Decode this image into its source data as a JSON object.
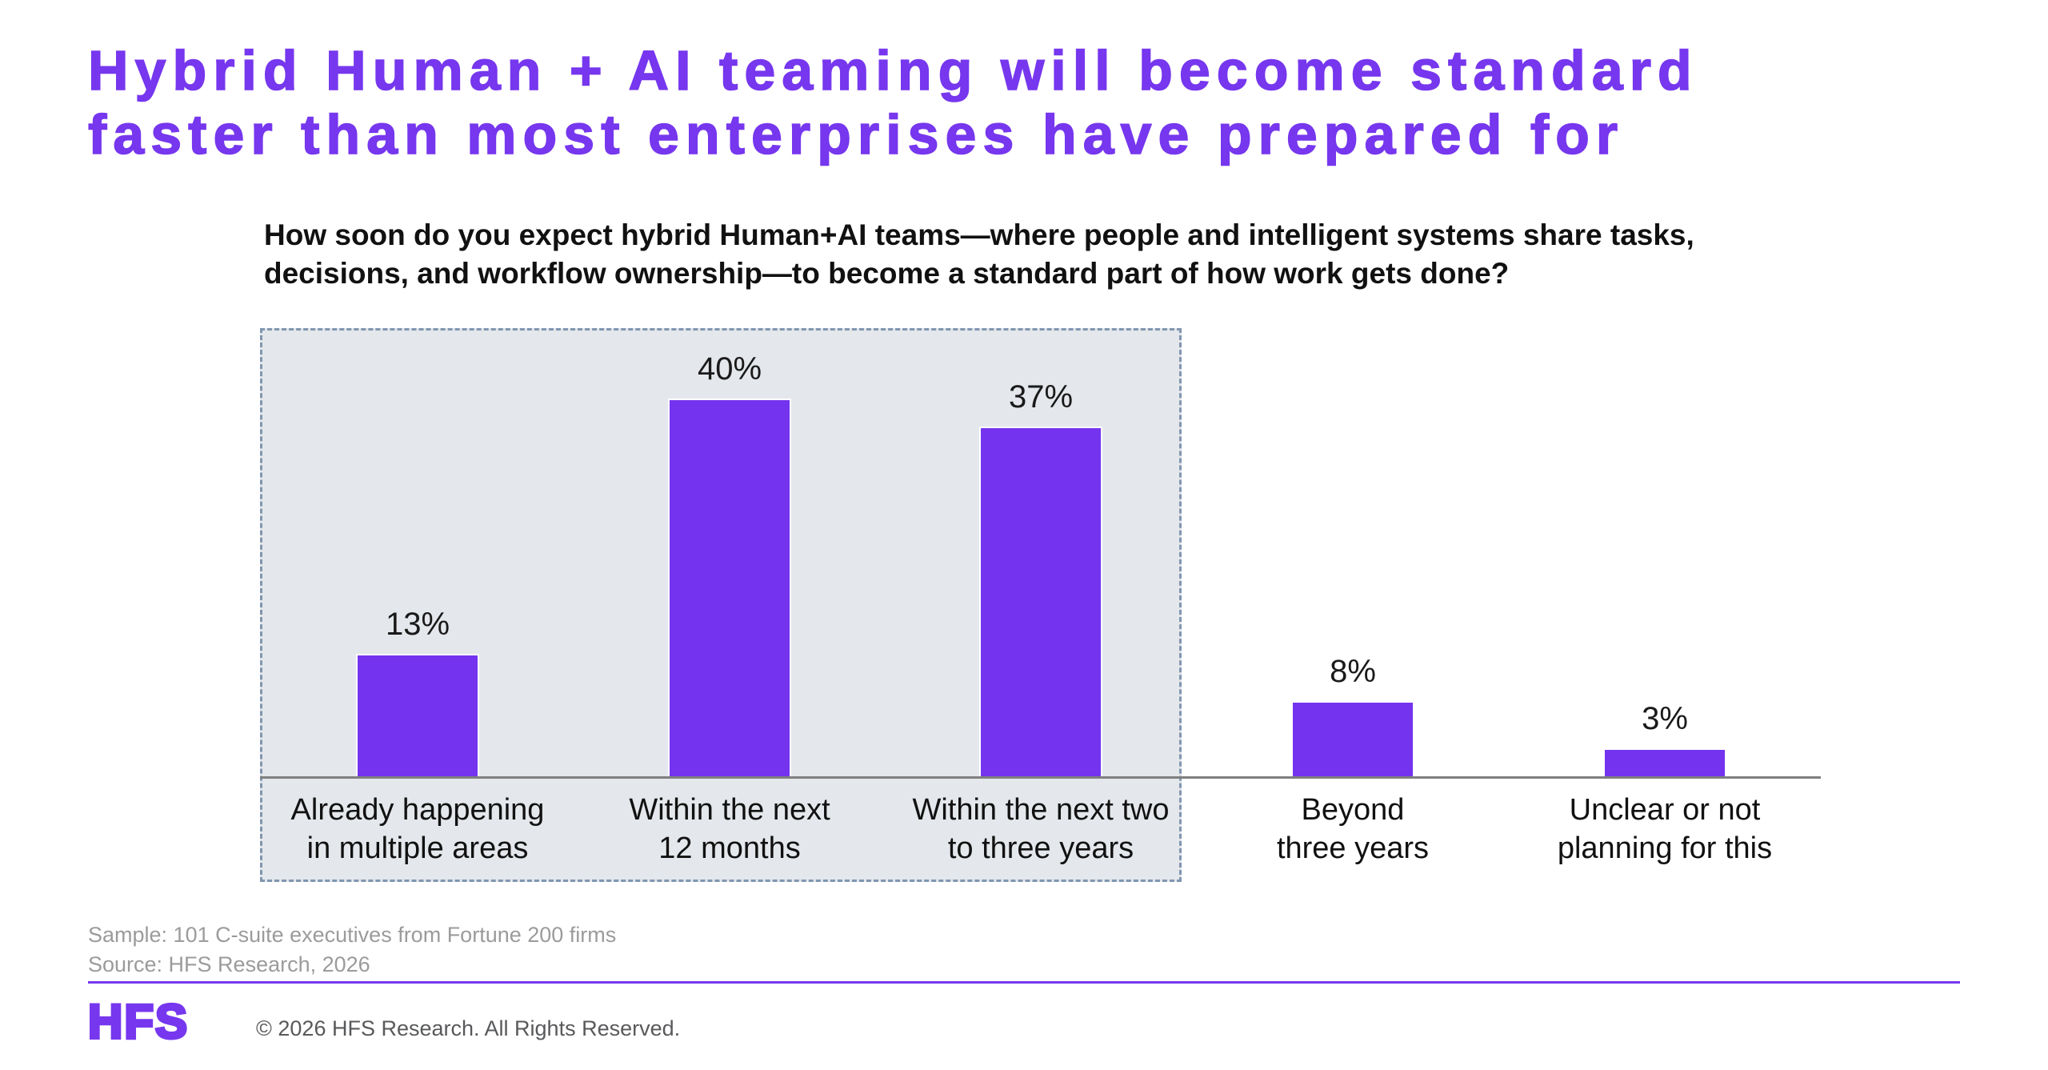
{
  "title": {
    "line1": "Hybrid Human + AI teaming will become standard",
    "line2": "faster than most enterprises have prepared for"
  },
  "question": {
    "line1": "How soon do you expect hybrid Human+AI teams—where people and intelligent systems share tasks,",
    "line2": "decisions, and workflow ownership—to become a standard part of how work gets done?"
  },
  "chart_data": {
    "type": "bar",
    "title": "How soon do you expect hybrid Human+AI teams—where people and intelligent systems share tasks, decisions, and workflow ownership—to become a standard part of how work gets done?",
    "categories": [
      "Already happening\nin multiple areas",
      "Within the next\n12 months",
      "Within the next two\nto three years",
      "Beyond\nthree years",
      "Unclear or not\nplanning for this"
    ],
    "values": [
      13,
      40,
      37,
      8,
      3
    ],
    "value_labels": [
      "13%",
      "40%",
      "37%",
      "8%",
      "3%"
    ],
    "xlabel": "",
    "ylabel": "",
    "ylim": [
      0,
      45
    ],
    "grid": false,
    "legend": false,
    "bar_color": "#7433EE",
    "bar_border_color": "#FFFFFF",
    "highlight_region": {
      "covers": [
        "Already happening in multiple areas",
        "Within the next 12 months",
        "Within the next two to three years"
      ],
      "style": "dashed-outline",
      "fill": "#E4E7EB",
      "border_color": "#8096B0"
    }
  },
  "footnotes": {
    "sample": "Sample: 101 C-suite executives from Fortune 200 firms",
    "source": "Source: HFS Research, 2026"
  },
  "footer": {
    "logo_text": "HFS",
    "copyright": "© 2026 HFS Research. All Rights Reserved."
  },
  "colors": {
    "brand_purple": "#7637EE",
    "bar_purple": "#7433EE",
    "chart_bg": "#E4E7EB",
    "dashed_border": "#8096B0",
    "axis_line": "#7F7F7F",
    "text_black": "#1A1A1A",
    "footnote_gray": "#9B9B9B",
    "copyright_gray": "#58595B"
  }
}
